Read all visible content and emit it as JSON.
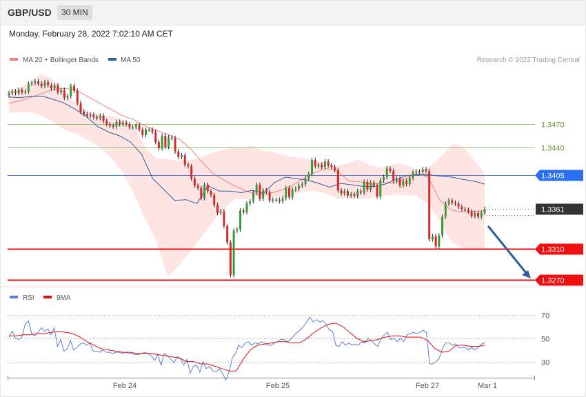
{
  "header": {
    "symbol": "GBP/USD",
    "timeframe": "30 MIN",
    "datetime": "Monday, February 28, 2022 7:02:10 AM CET"
  },
  "colors": {
    "ma20": "#f08080",
    "ma50": "#2d5d9f",
    "band": "#ffd5d5",
    "bull": "#3a9a3a",
    "bear": "#d42a2a",
    "support": "#ee1111",
    "resistance": "#8cc26a",
    "pivot": "#3a6fe0",
    "current": "#333333",
    "rsi": "#5b7fd6",
    "rsi_ma": "#dd1111"
  },
  "chart_data": [
    {
      "type": "candlestick",
      "title": "GBP/USD",
      "legend": [
        {
          "name": "MA 20 + Bollinger Bands"
        },
        {
          "name": "MA 50"
        }
      ],
      "attribution": "Research © 2022 Trading Central",
      "x_ticks": [
        "Feb 24",
        "Feb 25",
        "Feb 27",
        "Mar 1"
      ],
      "ylim": [
        1.3262,
        1.3541
      ],
      "levels": [
        {
          "label": "1.3470",
          "value": 1.347,
          "kind": "resistance"
        },
        {
          "label": "1.3440",
          "value": 1.344,
          "kind": "resistance"
        },
        {
          "label": "1.3405",
          "value": 1.3405,
          "kind": "pivot"
        },
        {
          "label": "1.3361",
          "value": 1.3361,
          "kind": "current"
        },
        {
          "label": "1.3310",
          "value": 1.331,
          "kind": "support"
        },
        {
          "label": "1.3270",
          "value": 1.327,
          "kind": "support"
        }
      ],
      "closes": [
        1.351,
        1.3512,
        1.351,
        1.3514,
        1.3511,
        1.3512,
        1.3522,
        1.3523,
        1.3525,
        1.3522,
        1.3519,
        1.3524,
        1.352,
        1.3516,
        1.352,
        1.3511,
        1.3514,
        1.3504,
        1.3506,
        1.3519,
        1.3513,
        1.3497,
        1.3486,
        1.3483,
        1.3481,
        1.3482,
        1.3479,
        1.3478,
        1.3481,
        1.3474,
        1.347,
        1.3468,
        1.3467,
        1.3473,
        1.347,
        1.3472,
        1.347,
        1.3466,
        1.3466,
        1.3469,
        1.3463,
        1.3456,
        1.3463,
        1.3463,
        1.346,
        1.3447,
        1.3439,
        1.3455,
        1.3441,
        1.3453,
        1.3452,
        1.3435,
        1.3428,
        1.343,
        1.3418,
        1.3416,
        1.34,
        1.3391,
        1.3388,
        1.3375,
        1.3392,
        1.3384,
        1.3379,
        1.3366,
        1.3356,
        1.3358,
        1.3339,
        1.3318,
        1.3276,
        1.3333,
        1.3335,
        1.3359,
        1.3357,
        1.3368,
        1.3371,
        1.3382,
        1.3392,
        1.3374,
        1.3385,
        1.3383,
        1.3372,
        1.3373,
        1.3373,
        1.3371,
        1.3375,
        1.3388,
        1.3376,
        1.3386,
        1.3387,
        1.3391,
        1.3393,
        1.34,
        1.3406,
        1.3424,
        1.3416,
        1.3418,
        1.3415,
        1.3422,
        1.3417,
        1.3415,
        1.3411,
        1.3385,
        1.3381,
        1.3384,
        1.3378,
        1.338,
        1.3378,
        1.3384,
        1.3382,
        1.3396,
        1.3386,
        1.3395,
        1.3391,
        1.3377,
        1.3398,
        1.3402,
        1.3413,
        1.341,
        1.3397,
        1.34,
        1.3391,
        1.3397,
        1.3393,
        1.3401,
        1.3408,
        1.3409,
        1.3409,
        1.3412,
        1.341,
        1.3322,
        1.3326,
        1.3313,
        1.3327,
        1.3351,
        1.3368,
        1.3372,
        1.3369,
        1.3368,
        1.3364,
        1.3361,
        1.336,
        1.3358,
        1.3352,
        1.3356,
        1.3351,
        1.3356,
        1.3361
      ],
      "ma20": [
        1.3497,
        1.35,
        1.3505,
        1.351,
        1.3515,
        1.3516,
        1.3513,
        1.3505,
        1.3497,
        1.3489,
        1.3481,
        1.3476,
        1.3468,
        1.3462,
        1.3457,
        1.3451,
        1.3439,
        1.3422,
        1.3407,
        1.3398,
        1.339,
        1.3384,
        1.3379,
        1.3381,
        1.3385,
        1.3391,
        1.34,
        1.3408,
        1.3413,
        1.341,
        1.3397,
        1.3396,
        1.3393,
        1.3395,
        1.3394,
        1.34,
        1.3406,
        1.3402,
        1.3373,
        1.336,
        1.3357,
        1.3358,
        1.3359
      ],
      "bb_upper": [
        1.3513,
        1.3517,
        1.3524,
        1.3535,
        1.3529,
        1.3514,
        1.35,
        1.349,
        1.3484,
        1.3481,
        1.348,
        1.3474,
        1.3465,
        1.3438,
        1.3426,
        1.3425,
        1.3423,
        1.3424,
        1.3426,
        1.3432,
        1.3436,
        1.3439,
        1.344,
        1.3442,
        1.3436,
        1.3434,
        1.343,
        1.3428,
        1.3426,
        1.3423,
        1.3421,
        1.3416,
        1.3419,
        1.3425,
        1.3418,
        1.3414,
        1.3417,
        1.342,
        1.3415,
        1.341,
        1.3418,
        1.343,
        1.3445,
        1.3441,
        1.3424,
        1.3407
      ],
      "bb_lower": [
        1.3484,
        1.3486,
        1.3485,
        1.348,
        1.3472,
        1.3462,
        1.3457,
        1.3449,
        1.3441,
        1.3427,
        1.3409,
        1.3381,
        1.3349,
        1.332,
        1.3274,
        1.3288,
        1.3306,
        1.3325,
        1.3345,
        1.3362,
        1.3374,
        1.3374,
        1.3378,
        1.3377,
        1.3376,
        1.338,
        1.3384,
        1.3384,
        1.3381,
        1.3374,
        1.3375,
        1.3374,
        1.3375,
        1.3378,
        1.3379,
        1.3379,
        1.3378,
        1.3367,
        1.3347,
        1.332,
        1.3311,
        1.3309,
        1.3311
      ],
      "ma50": [
        1.3505,
        1.3504,
        1.3506,
        1.3506,
        1.3502,
        1.3497,
        1.3489,
        1.348,
        1.3467,
        1.346,
        1.3455,
        1.3447,
        1.3431,
        1.34,
        1.3386,
        1.3372,
        1.3373,
        1.3368,
        1.3391,
        1.3384,
        1.3384,
        1.3382,
        1.3385,
        1.3381,
        1.3395,
        1.3402,
        1.34,
        1.3398,
        1.3394,
        1.3389,
        1.3394,
        1.3392,
        1.339,
        1.339,
        1.3393,
        1.3399,
        1.3404,
        1.3405,
        1.3405,
        1.3403,
        1.3402,
        1.3399,
        1.3397,
        1.3393
      ]
    },
    {
      "type": "line",
      "title": "RSI",
      "legend": [
        {
          "name": "RSI"
        },
        {
          "name": "9MA"
        }
      ],
      "y_ticks": [
        70,
        50,
        30
      ],
      "ylim": [
        15,
        80
      ],
      "series": [
        {
          "name": "RSI",
          "values": [
            51,
            56,
            50,
            49,
            51,
            62,
            65,
            54,
            52,
            55,
            59,
            56,
            58,
            53,
            59,
            43,
            49,
            39,
            41,
            48,
            40,
            42,
            45,
            46,
            44,
            46,
            39,
            39,
            38,
            40,
            38,
            38,
            37,
            38,
            38,
            37,
            38,
            37,
            37,
            36,
            36,
            37,
            38,
            37,
            35,
            31,
            36,
            27,
            37,
            35,
            32,
            29,
            34,
            33,
            27,
            32,
            20,
            26,
            27,
            21,
            30,
            24,
            26,
            22,
            21,
            24,
            20,
            14,
            21,
            33,
            37,
            44,
            42,
            46,
            47,
            44,
            46,
            45,
            47,
            46,
            44,
            44,
            46,
            47,
            49,
            49,
            47,
            49,
            52,
            55,
            57,
            60,
            64,
            68,
            64,
            66,
            64,
            65,
            62,
            57,
            56,
            44,
            43,
            47,
            44,
            46,
            44,
            45,
            44,
            47,
            46,
            50,
            48,
            45,
            43,
            50,
            53,
            55,
            49,
            50,
            47,
            50,
            47,
            53,
            54,
            55,
            54,
            55,
            57,
            55,
            28,
            28,
            30,
            33,
            42,
            46,
            46,
            44,
            45,
            42,
            42,
            42,
            40,
            42,
            40,
            42,
            45,
            46
          ]
        },
        {
          "name": "9MA",
          "values": [
            52,
            52,
            53,
            53,
            54,
            54,
            55,
            56,
            55,
            54,
            51,
            47,
            44,
            41,
            40,
            39,
            38,
            38,
            37,
            37,
            37,
            36,
            35,
            34,
            33,
            30,
            30,
            28,
            28,
            26,
            24,
            22,
            22,
            32,
            40,
            44,
            45,
            46,
            47,
            47,
            46,
            46,
            50,
            55,
            59,
            62,
            63,
            60,
            55,
            50,
            47,
            48,
            49,
            51,
            52,
            52,
            51,
            51,
            51,
            48,
            41,
            38,
            39,
            44,
            44,
            43,
            43,
            44
          ]
        }
      ]
    }
  ]
}
